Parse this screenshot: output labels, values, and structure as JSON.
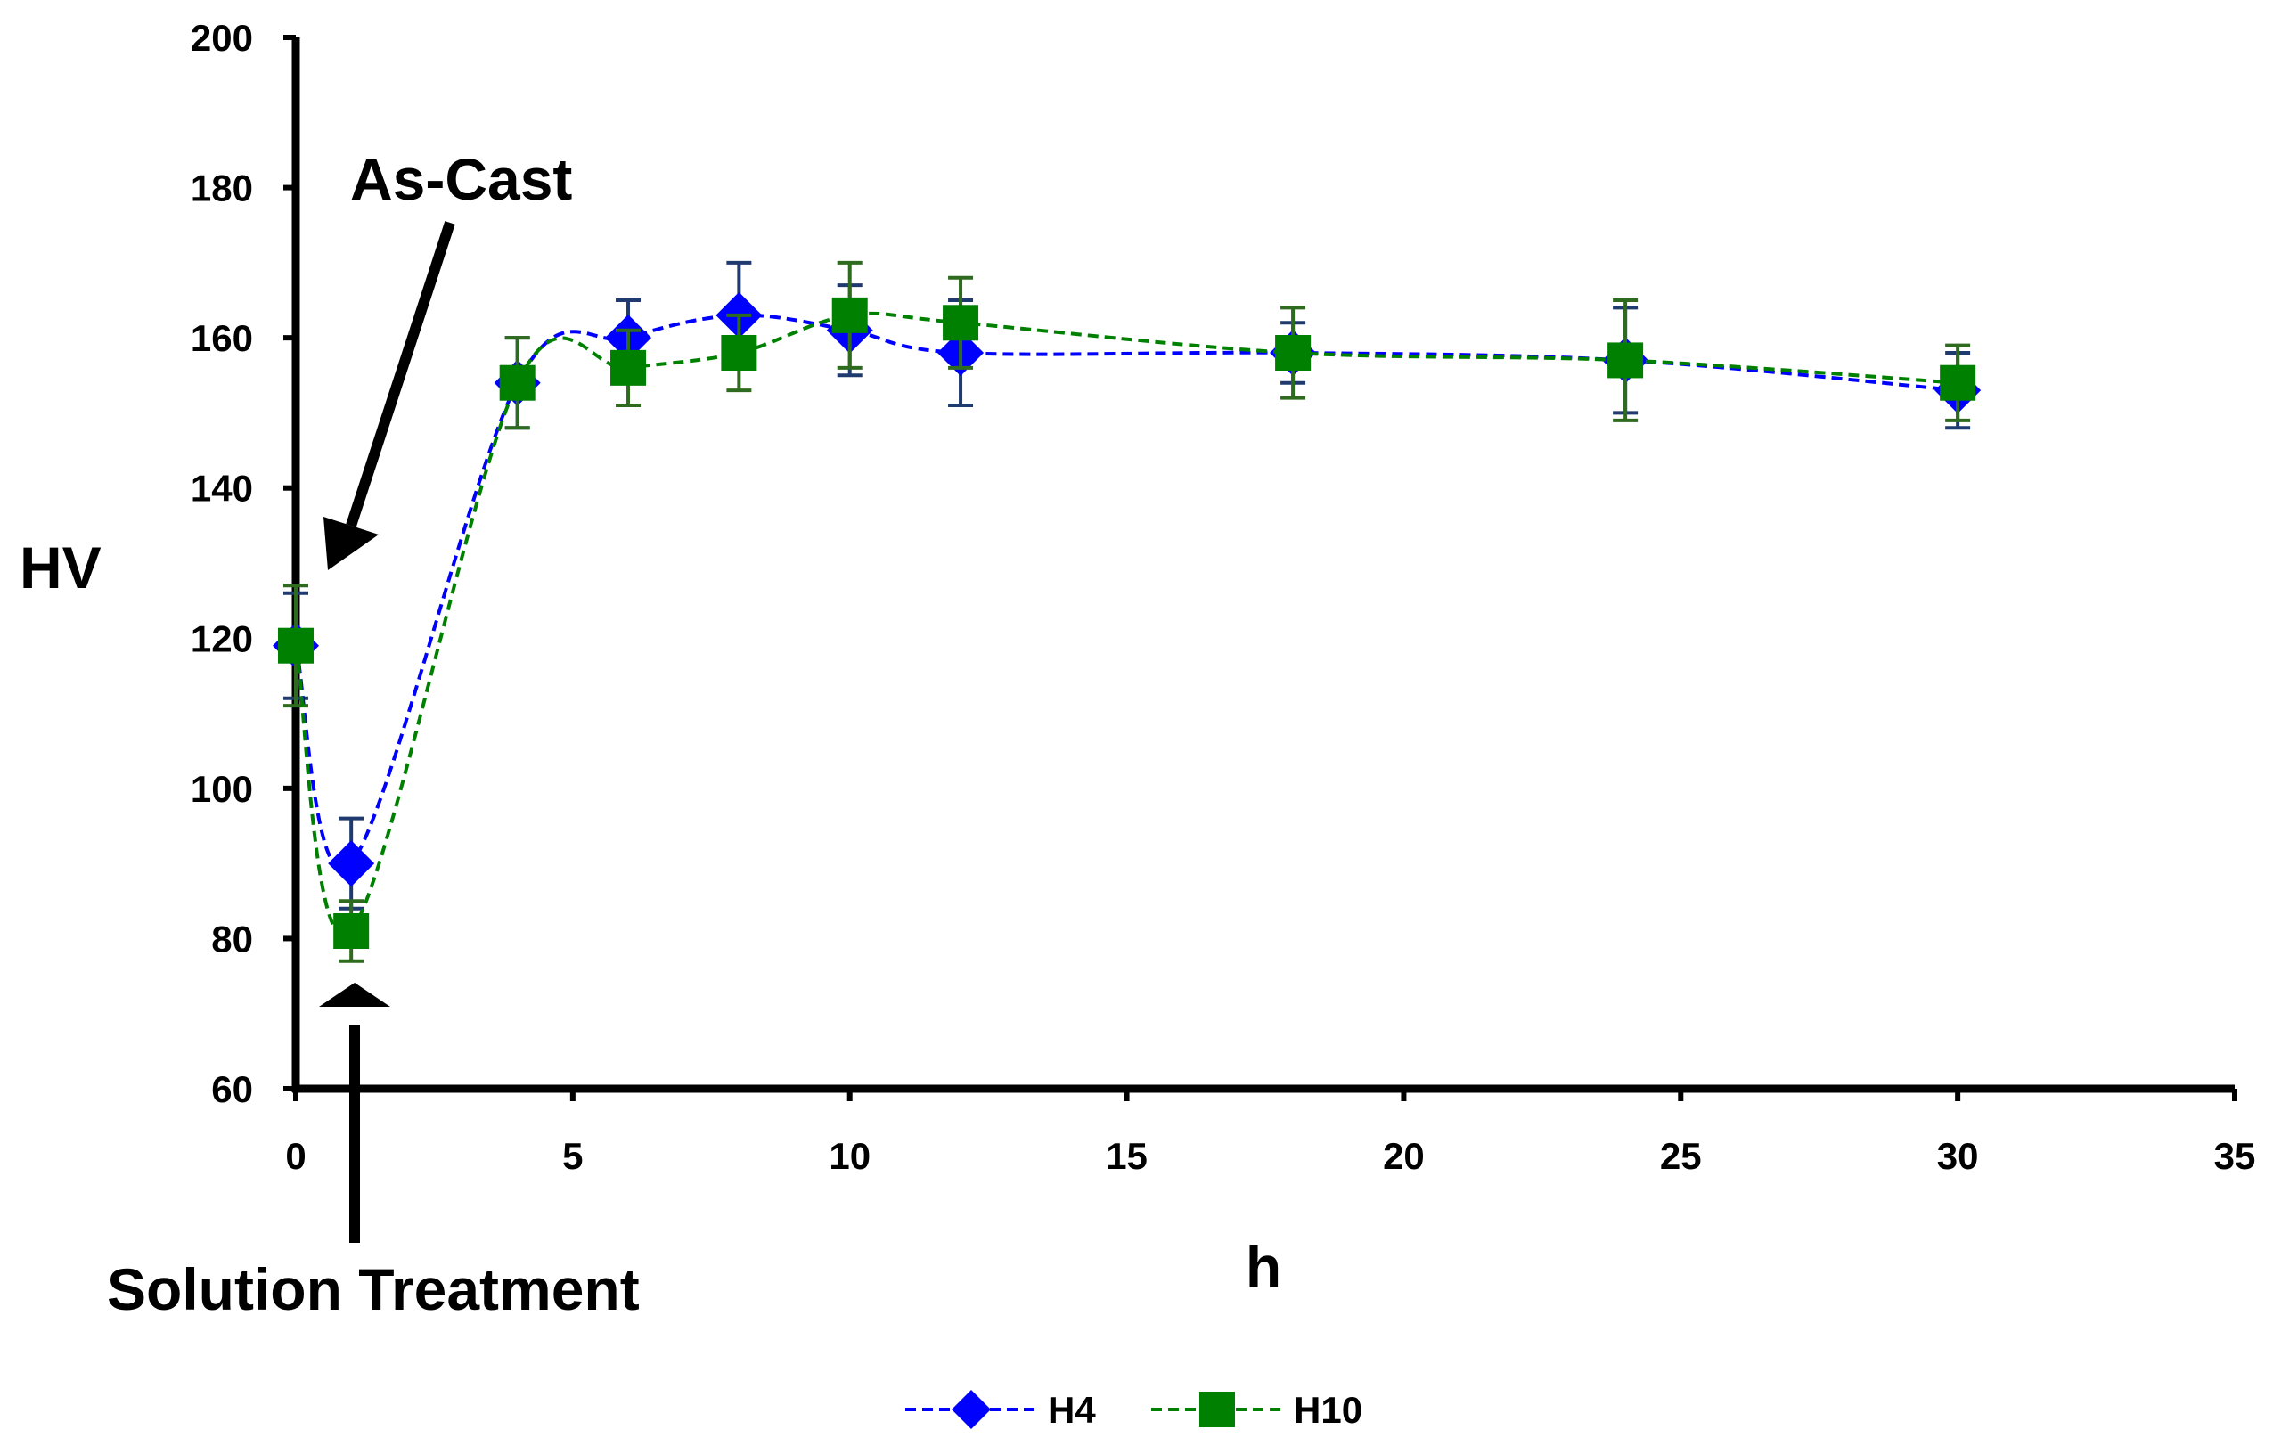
{
  "chart_data": {
    "type": "line",
    "title": "",
    "xlabel": "h",
    "ylabel": "HV",
    "xlim": [
      0,
      35
    ],
    "ylim": [
      60,
      200
    ],
    "xticks": [
      0,
      5,
      10,
      15,
      20,
      25,
      30,
      35
    ],
    "yticks": [
      60,
      80,
      100,
      120,
      140,
      160,
      180,
      200
    ],
    "xtick_labels": [
      "0",
      "5",
      "10",
      "15",
      "20",
      "25",
      "30",
      "35"
    ],
    "ytick_labels": [
      "60",
      "80",
      "100",
      "120",
      "140",
      "160",
      "180",
      "200"
    ],
    "grid": false,
    "legend_position": "bottom-center",
    "series": [
      {
        "name": "H4",
        "color": "#0000FF",
        "marker": "diamond",
        "line_style": "dashed",
        "x": [
          0,
          1,
          4,
          6,
          8,
          10,
          12,
          18,
          24,
          30
        ],
        "y": [
          119,
          90,
          154,
          160,
          163,
          161,
          158,
          158,
          157,
          153
        ],
        "error": [
          7,
          6,
          6,
          5,
          7,
          6,
          7,
          4,
          7,
          5
        ]
      },
      {
        "name": "H10",
        "color": "#008000",
        "marker": "square",
        "line_style": "dashed",
        "x": [
          0,
          1,
          4,
          6,
          8,
          10,
          12,
          18,
          24,
          30
        ],
        "y": [
          119,
          81,
          154,
          156,
          158,
          163,
          162,
          158,
          157,
          154
        ],
        "error": [
          8,
          4,
          6,
          5,
          5,
          7,
          6,
          6,
          8,
          5
        ]
      }
    ],
    "annotations": [
      {
        "text": "As-Cast",
        "points_to": {
          "x": 0.5,
          "y": 125
        }
      },
      {
        "text": "Solution Treatment",
        "points_to": {
          "x": 1,
          "y": 78
        }
      }
    ]
  }
}
